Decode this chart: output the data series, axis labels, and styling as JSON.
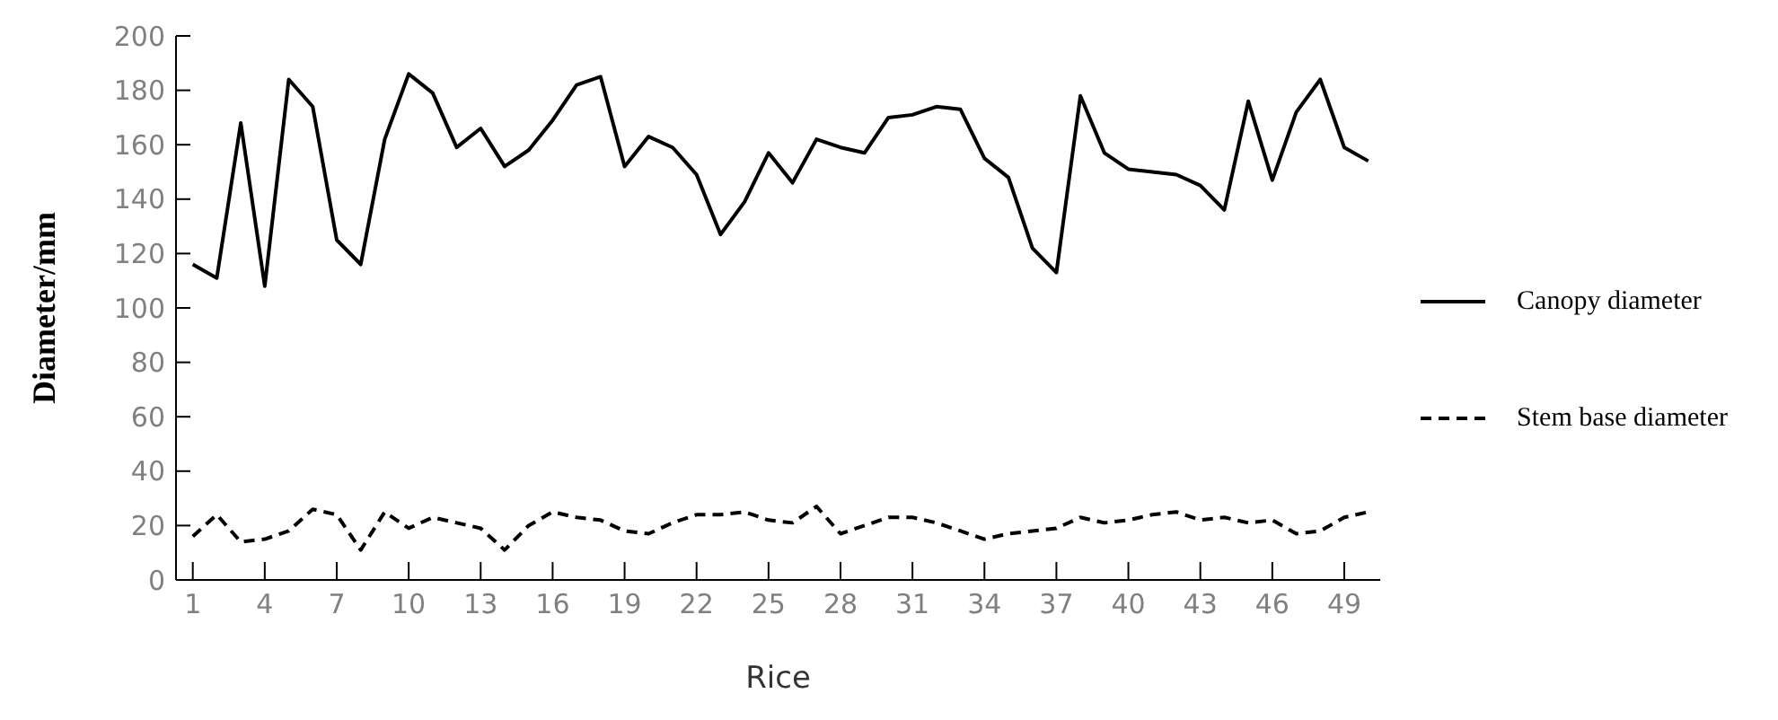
{
  "chart_data": {
    "type": "line",
    "xlabel": "Rice",
    "ylabel": "Diameter/mm",
    "x": [
      1,
      2,
      3,
      4,
      5,
      6,
      7,
      8,
      9,
      10,
      11,
      12,
      13,
      14,
      15,
      16,
      17,
      18,
      19,
      20,
      21,
      22,
      23,
      24,
      25,
      26,
      27,
      28,
      29,
      30,
      31,
      32,
      33,
      34,
      35,
      36,
      37,
      38,
      39,
      40,
      41,
      42,
      43,
      44,
      45,
      46,
      47,
      48,
      49,
      50
    ],
    "series": [
      {
        "name": "Canopy diameter",
        "color": "#000000",
        "line_style": "solid",
        "values": [
          116,
          111,
          168,
          108,
          184,
          174,
          125,
          116,
          162,
          186,
          179,
          159,
          166,
          152,
          158,
          169,
          182,
          185,
          152,
          163,
          159,
          149,
          127,
          139,
          157,
          146,
          162,
          159,
          157,
          170,
          171,
          174,
          173,
          155,
          148,
          122,
          113,
          178,
          157,
          151,
          150,
          149,
          145,
          136,
          176,
          147,
          172,
          184,
          159,
          154
        ]
      },
      {
        "name": "Stem base diameter",
        "color": "#000000",
        "line_style": "dashed",
        "values": [
          16,
          24,
          14,
          15,
          18,
          26,
          24,
          11,
          25,
          19,
          23,
          21,
          19,
          11,
          20,
          25,
          23,
          22,
          18,
          17,
          21,
          24,
          24,
          25,
          22,
          21,
          27,
          17,
          20,
          23,
          23,
          21,
          18,
          15,
          17,
          18,
          19,
          23,
          21,
          22,
          24,
          25,
          22,
          23,
          21,
          22,
          17,
          18,
          23,
          25
        ]
      }
    ],
    "xlim": [
      0.3,
      50.5
    ],
    "xticks": [
      1,
      4,
      7,
      10,
      13,
      16,
      19,
      22,
      25,
      28,
      31,
      34,
      37,
      40,
      43,
      46,
      49
    ],
    "ylim": [
      0,
      200
    ],
    "yticks": [
      0,
      20,
      40,
      60,
      80,
      100,
      120,
      140,
      160,
      180,
      200
    ],
    "grid": false,
    "legend": "right",
    "marker": "none"
  }
}
